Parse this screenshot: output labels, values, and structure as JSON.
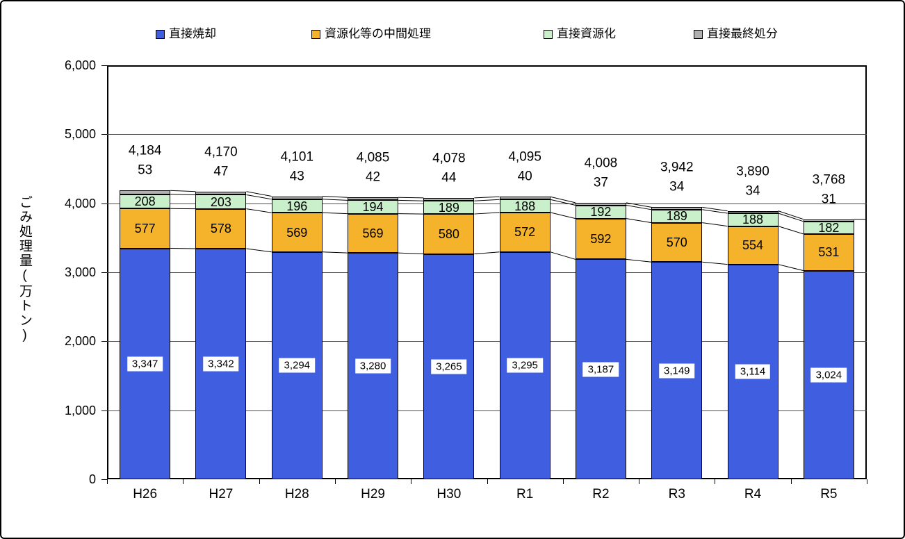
{
  "chart_data": {
    "type": "bar",
    "stacked": true,
    "title": "",
    "ylabel": "ごみ処理量(万トン)",
    "xlabel": "",
    "ylim": [
      0,
      6000
    ],
    "ytick_interval": 1000,
    "ytick_labels": [
      "0",
      "1,000",
      "2,000",
      "3,000",
      "4,000",
      "5,000",
      "6,000"
    ],
    "grid": "horizontal",
    "legend_position": "top",
    "categories": [
      "H26",
      "H27",
      "H28",
      "H29",
      "H30",
      "R1",
      "R2",
      "R3",
      "R4",
      "R5"
    ],
    "series": [
      {
        "name": "直接焼却",
        "color": "#3f5fe0",
        "values": [
          3347,
          3342,
          3294,
          3280,
          3265,
          3295,
          3187,
          3149,
          3114,
          3024
        ],
        "labels": [
          "3,347",
          "3,342",
          "3,294",
          "3,280",
          "3,265",
          "3,295",
          "3,187",
          "3,149",
          "3,114",
          "3,024"
        ]
      },
      {
        "name": "資源化等の中間処理",
        "color": "#f5b32b",
        "values": [
          577,
          578,
          569,
          569,
          580,
          572,
          592,
          570,
          554,
          531
        ],
        "labels": [
          "577",
          "578",
          "569",
          "569",
          "580",
          "572",
          "592",
          "570",
          "554",
          "531"
        ]
      },
      {
        "name": "直接資源化",
        "color": "#c9efcb",
        "values": [
          208,
          203,
          196,
          194,
          189,
          188,
          192,
          189,
          188,
          182
        ],
        "labels": [
          "208",
          "203",
          "196",
          "194",
          "189",
          "188",
          "192",
          "189",
          "188",
          "182"
        ]
      },
      {
        "name": "直接最終処分",
        "color": "#b0b0b0",
        "values": [
          53,
          47,
          43,
          42,
          44,
          40,
          37,
          34,
          34,
          31
        ],
        "labels": [
          "53",
          "47",
          "43",
          "42",
          "44",
          "40",
          "37",
          "34",
          "34",
          "31"
        ]
      }
    ],
    "totals": {
      "values": [
        4184,
        4170,
        4101,
        4085,
        4078,
        4095,
        4008,
        3942,
        3890,
        3768
      ],
      "labels": [
        "4,184",
        "4,170",
        "4,101",
        "4,085",
        "4,078",
        "4,095",
        "4,008",
        "3,942",
        "3,890",
        "3,768"
      ]
    }
  },
  "colors": {
    "axis": "#000000",
    "gridline": "#4a4a4a",
    "label_box_background": "#ffffff"
  }
}
